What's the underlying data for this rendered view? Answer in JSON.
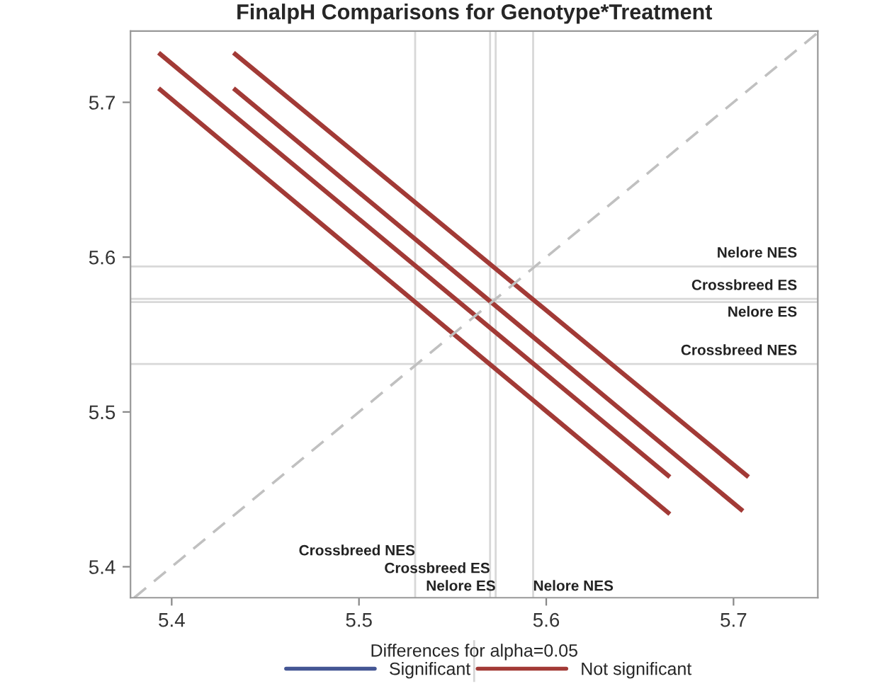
{
  "chart_data": {
    "type": "line",
    "title": "FinalpH Comparisons for Genotype*Treatment",
    "legend_title": "Differences for alpha=0.05",
    "legend": "bottom",
    "grid": false,
    "xlim": [
      5.378,
      5.745
    ],
    "ylim": [
      5.38,
      5.746
    ],
    "xticks": [
      5.4,
      5.5,
      5.6,
      5.7
    ],
    "yticks": [
      5.4,
      5.5,
      5.6,
      5.7
    ],
    "series": [
      {
        "name": "Not significant",
        "color": "#a23a36",
        "x": [
          5.393,
          5.666
        ],
        "values": [
          5.709,
          5.434
        ]
      },
      {
        "color": "#a23a36",
        "x": [
          5.393,
          5.666
        ],
        "values": [
          5.732,
          5.458
        ]
      },
      {
        "color": "#a23a36",
        "x": [
          5.433,
          5.708
        ],
        "values": [
          5.732,
          5.458
        ]
      },
      {
        "color": "#a23a36",
        "x": [
          5.433,
          5.705
        ],
        "values": [
          5.709,
          5.436
        ]
      },
      {
        "name": "Significant",
        "color": "#445694"
      },
      {
        "color": "#c0c0c0",
        "line_style": "dashed",
        "x": [
          5.38,
          5.745
        ],
        "values": [
          5.38,
          5.745
        ]
      }
    ],
    "ref_lines": [
      {
        "axis": "x",
        "value": 5.53,
        "label": "Crossbreed NES"
      },
      {
        "axis": "x",
        "value": 5.57,
        "label": "Crossbreed ES"
      },
      {
        "axis": "x",
        "value": 5.573,
        "label": "Nelore ES"
      },
      {
        "axis": "x",
        "value": 5.593,
        "label": "Nelore NES"
      },
      {
        "axis": "y",
        "value": 5.594,
        "label": "Nelore NES"
      },
      {
        "axis": "y",
        "value": 5.573,
        "label": "Crossbreed ES"
      },
      {
        "axis": "y",
        "value": 5.571,
        "label": "Nelore ES"
      },
      {
        "axis": "y",
        "value": 5.531,
        "label": "Crossbreed NES"
      }
    ]
  }
}
